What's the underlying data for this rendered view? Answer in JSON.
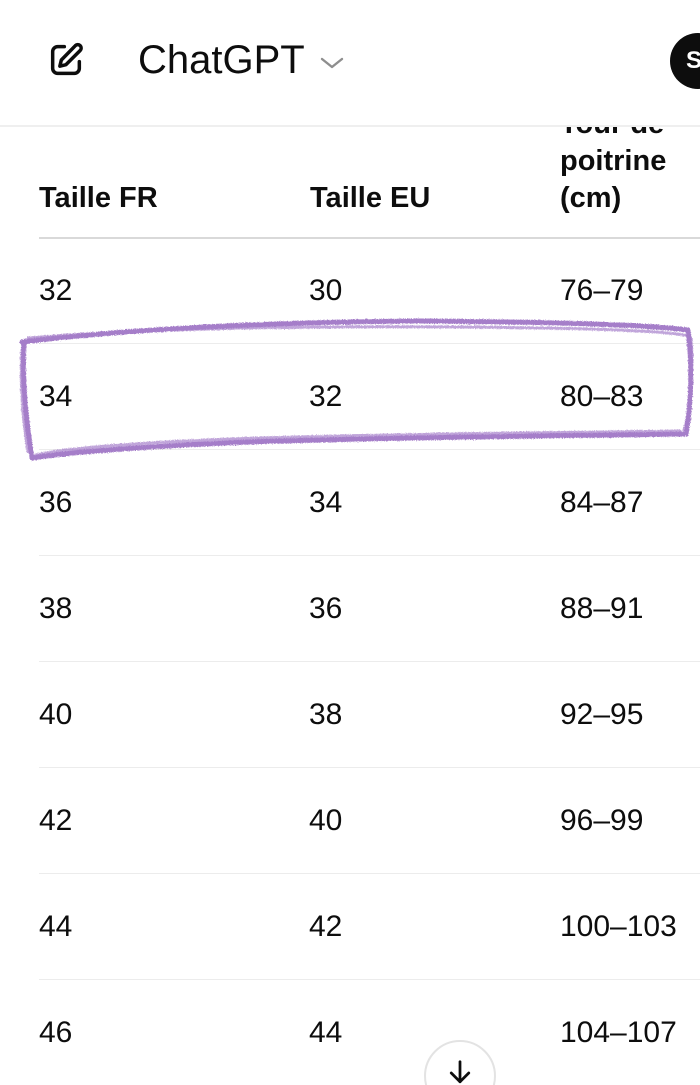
{
  "header": {
    "title": "ChatGPT",
    "avatar_initial": "S"
  },
  "table": {
    "columns": [
      "Taille FR",
      "Taille EU",
      "Tour de poitrine (cm)"
    ],
    "header_lines_col3": [
      "Tour de",
      "poitrine",
      "(cm)"
    ],
    "rows": [
      [
        "32",
        "30",
        "76–79"
      ],
      [
        "34",
        "32",
        "80–83"
      ],
      [
        "36",
        "34",
        "84–87"
      ],
      [
        "38",
        "36",
        "88–91"
      ],
      [
        "40",
        "38",
        "92–95"
      ],
      [
        "42",
        "40",
        "96–99"
      ],
      [
        "44",
        "42",
        "100–103"
      ],
      [
        "46",
        "44",
        "104–107"
      ]
    ],
    "highlighted_row": 1
  },
  "colors": {
    "highlight": "#9b6fc3",
    "text": "#0d0d0d",
    "divider": "#ececec"
  },
  "icons": {
    "new_chat": "pencil-square-icon",
    "title_dropdown": "chevron-down-icon",
    "scroll_down": "arrow-down-icon"
  }
}
